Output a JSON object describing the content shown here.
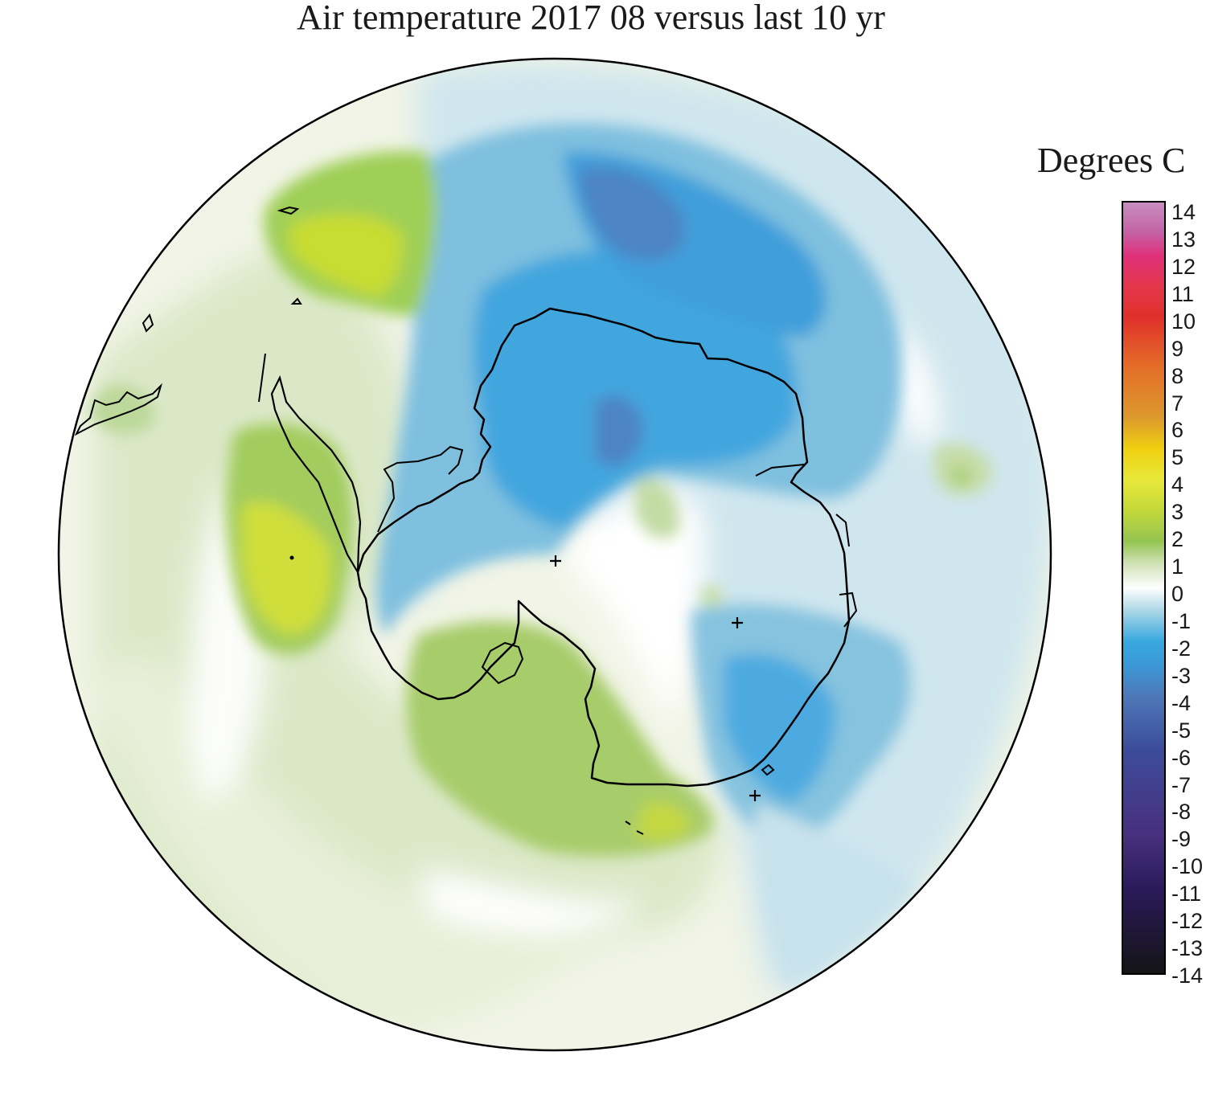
{
  "title": "Air temperature 2017 08 versus last 10 yr",
  "legend": {
    "title": "Degrees C",
    "ticks": [
      "14",
      "13",
      "12",
      "11",
      "10",
      "9",
      "8",
      "7",
      "6",
      "5",
      "4",
      "3",
      "2",
      "1",
      "0",
      "-1",
      "-2",
      "-3",
      "-4",
      "-5",
      "-6",
      "-7",
      "-8",
      "-9",
      "-10",
      "-11",
      "-12",
      "-13",
      "-14"
    ],
    "range": [
      -14,
      14
    ],
    "colors": {
      "14": "#c462a6",
      "12": "#e0307a",
      "10": "#e0302a",
      "8": "#e46a28",
      "6": "#dd9a2d",
      "5": "#efd010",
      "4": "#e8e83a",
      "3": "#c3d83a",
      "2": "#94c451",
      "1": "#d3e3bb",
      "0": "#ffffff",
      "-1": "#a9d6e5",
      "-2": "#37a8e0",
      "-3": "#3b98d6",
      "-4": "#4e78b8",
      "-6": "#3c4c9a",
      "-9": "#48307e",
      "-11": "#2a1a5a",
      "-14": "#141414"
    }
  },
  "map": {
    "projection": "south polar stereographic",
    "region": "Antarctica",
    "pole_markers": [
      "+",
      "+",
      "+"
    ]
  }
}
